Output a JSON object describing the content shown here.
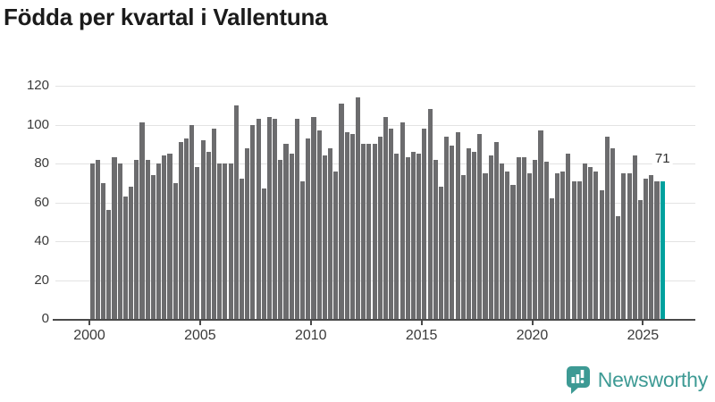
{
  "chart_data": {
    "type": "bar",
    "title": "Födda per kvartal i Vallentuna",
    "x_start_year": 2000,
    "quarters_per_year": 4,
    "values": [
      80,
      82,
      70,
      56,
      83,
      80,
      63,
      68,
      82,
      101,
      82,
      74,
      80,
      84,
      85,
      70,
      91,
      93,
      100,
      78,
      92,
      86,
      98,
      80,
      80,
      80,
      110,
      72,
      88,
      100,
      103,
      67,
      104,
      103,
      82,
      90,
      85,
      103,
      71,
      93,
      104,
      97,
      84,
      88,
      76,
      111,
      96,
      95,
      114,
      90,
      90,
      90,
      94,
      104,
      98,
      85,
      101,
      83,
      86,
      85,
      98,
      108,
      82,
      68,
      94,
      89,
      96,
      74,
      88,
      86,
      95,
      75,
      84,
      91,
      80,
      76,
      69,
      83,
      83,
      75,
      82,
      97,
      81,
      62,
      75,
      76,
      85,
      71,
      71,
      80,
      78,
      76,
      66,
      94,
      88,
      53,
      75,
      75,
      84,
      61,
      72,
      74,
      71,
      71
    ],
    "highlight_last": true,
    "last_value_label": "71",
    "yticks": [
      0,
      20,
      40,
      60,
      80,
      100,
      120
    ],
    "ylim": [
      0,
      120
    ],
    "xtick_years": [
      2000,
      2005,
      2010,
      2015,
      2020,
      2025
    ],
    "grid": true,
    "legend": "none"
  },
  "branding": {
    "logo_text": "Newsworthy"
  },
  "colors": {
    "bar": "#6c6c6e",
    "highlight": "#00a19e",
    "logo": "#3d9a94",
    "grid": "#e3e3e3",
    "axis": "#4a4a4a",
    "text": "#3a3a3a",
    "title": "#1b1b1b"
  }
}
